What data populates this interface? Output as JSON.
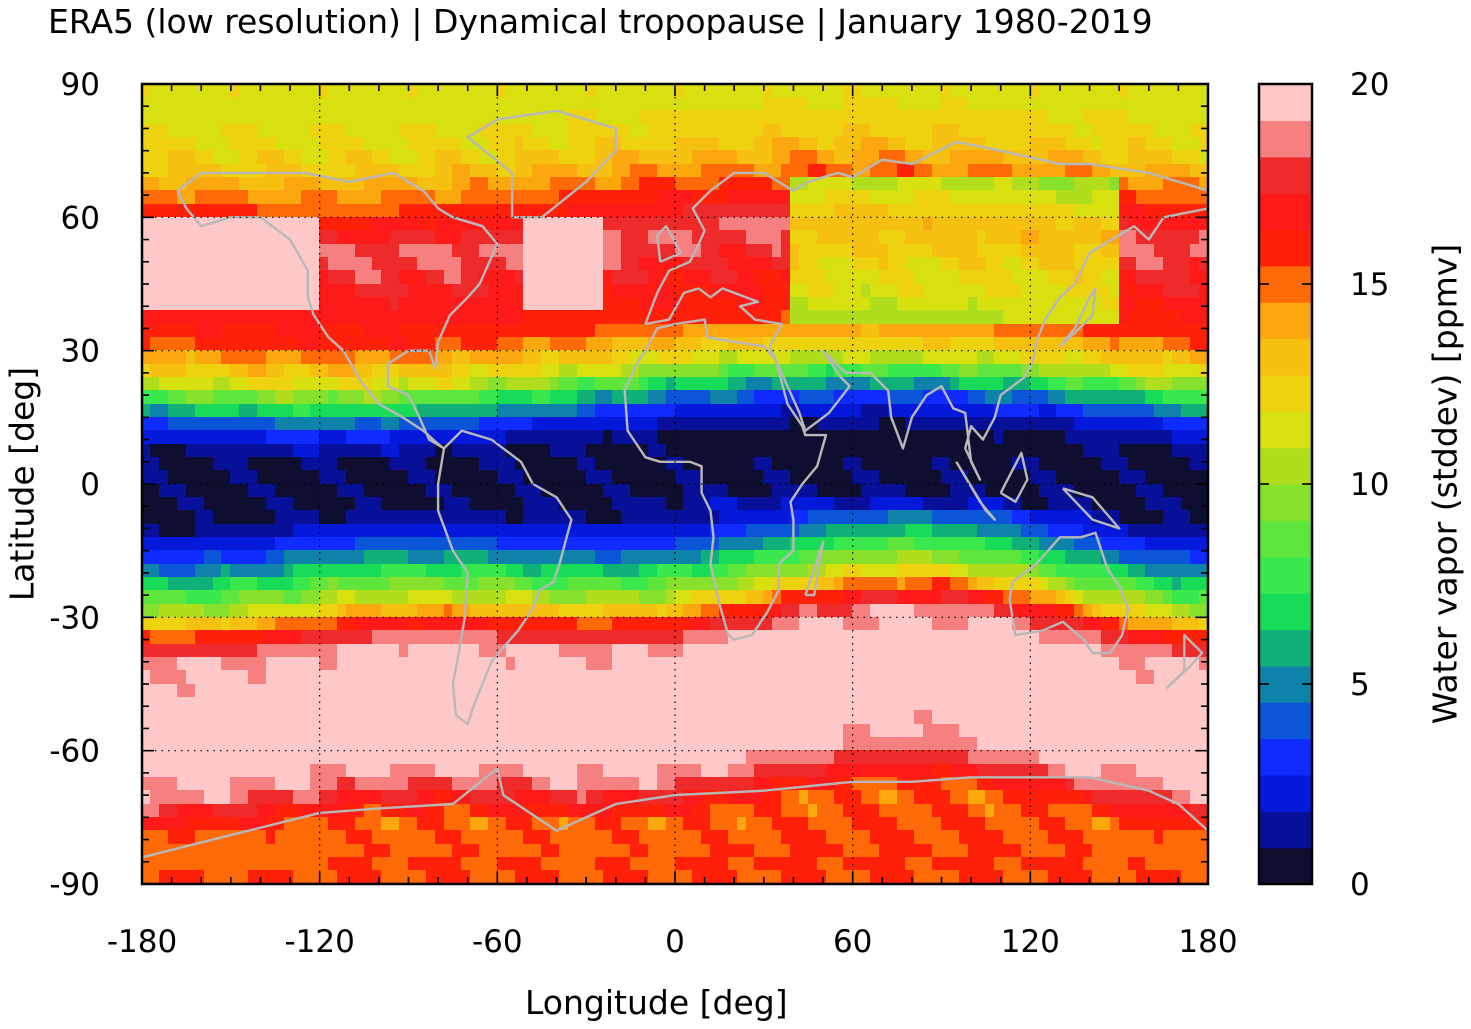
{
  "chart_data": {
    "type": "heatmap",
    "title": "ERA5 (low resolution) | Dynamical tropopause | January 1980-2019",
    "xlabel": "Longitude [deg]",
    "ylabel": "Latitude [deg]",
    "colorbar_label": "Water vapor (stddev) [ppmv]",
    "xlim": [
      -180,
      180
    ],
    "ylim": [
      -90,
      90
    ],
    "xticks": [
      "-180",
      "-120",
      "-60",
      "0",
      "60",
      "120",
      "180"
    ],
    "yticks": [
      "90",
      "60",
      "30",
      "0",
      "-30",
      "-60",
      "-90"
    ],
    "colorbar_ticks": [
      "20",
      "15",
      "10",
      "5",
      "0"
    ],
    "colorbar_range": [
      0,
      20
    ],
    "grid": true,
    "coastlines": true,
    "colorbar_colors": [
      "#0e0e30",
      "#08109a",
      "#0419da",
      "#0f2bff",
      "#0a55d8",
      "#0e82a8",
      "#10b079",
      "#18dc58",
      "#38e84c",
      "#5ee63d",
      "#86e02c",
      "#b0de1c",
      "#d8e010",
      "#eed210",
      "#f6c010",
      "#fba80e",
      "#ff6a08",
      "#ff200a",
      "#ff1a1a",
      "#ee2a2a",
      "#f68080",
      "#ffc8c8"
    ],
    "zonal_mean_stddev_by_latitude": {
      "lat": [
        85,
        75,
        65,
        55,
        45,
        35,
        25,
        20,
        15,
        10,
        5,
        0,
        -5,
        -10,
        -15,
        -20,
        -25,
        -30,
        -35,
        -45,
        -55,
        -65,
        -75,
        -85
      ],
      "value": [
        11.5,
        12.5,
        15.5,
        18.5,
        17.0,
        16.0,
        11.0,
        6.5,
        3.0,
        1.0,
        0.5,
        0.5,
        0.8,
        2.5,
        5.0,
        8.0,
        11.0,
        16.0,
        19.0,
        20.0,
        20.0,
        19.0,
        15.0,
        15.5
      ]
    }
  }
}
